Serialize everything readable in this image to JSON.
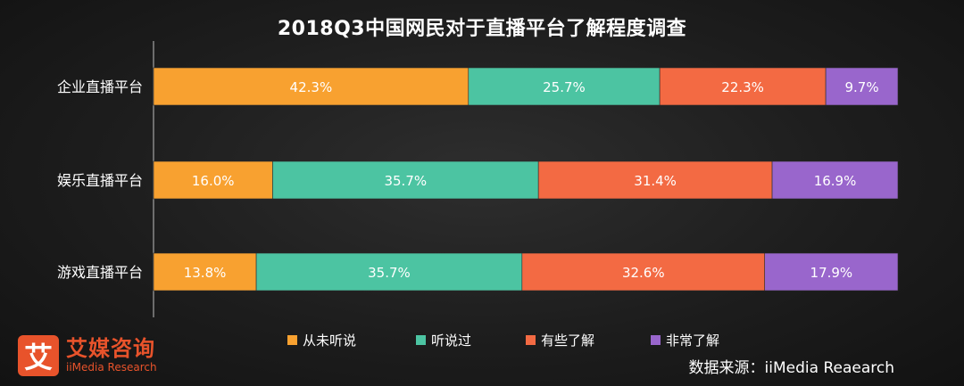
{
  "chart_data": {
    "type": "bar",
    "orientation": "horizontal",
    "stacked": true,
    "title": "2018Q3中国网民对于直播平台了解程度调查",
    "categories": [
      "企业直播平台",
      "娱乐直播平台",
      "游戏直播平台"
    ],
    "series": [
      {
        "name": "从未听说",
        "color": "#f8a130",
        "values": [
          42.3,
          16.0,
          13.8
        ],
        "labels": [
          "42.3%",
          "16.0%",
          "13.8%"
        ]
      },
      {
        "name": "听说过",
        "color": "#4cc4a2",
        "values": [
          25.7,
          35.7,
          35.7
        ],
        "labels": [
          "25.7%",
          "35.7%",
          "35.7%"
        ]
      },
      {
        "name": "有些了解",
        "color": "#f36a43",
        "values": [
          22.3,
          31.4,
          32.6
        ],
        "labels": [
          "22.3%",
          "31.4%",
          "32.6%"
        ]
      },
      {
        "name": "非常了解",
        "color": "#9966cc",
        "values": [
          9.7,
          16.9,
          17.9
        ],
        "labels": [
          "9.7%",
          "16.9%",
          "17.9%"
        ]
      }
    ],
    "legend_position": "bottom",
    "grid": false
  },
  "brand": {
    "logo_char": "艾",
    "name_cn": "艾媒咨询",
    "name_en": "iiMedia Research",
    "color": "#e8532b"
  },
  "source": "数据来源：iiMedia Reaearch"
}
